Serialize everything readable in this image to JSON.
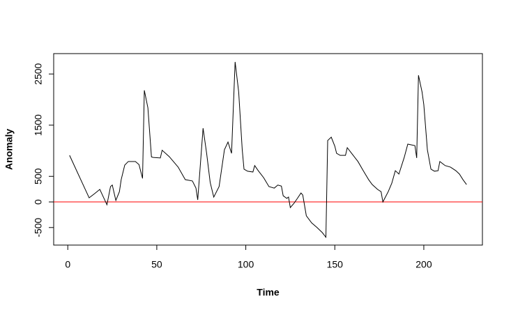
{
  "chart_data": {
    "type": "line",
    "x_label": "Time",
    "y_label": "Anomaly",
    "x": [
      1,
      12,
      15,
      18,
      20,
      22,
      24,
      25,
      27,
      29,
      30,
      32,
      34,
      36,
      38,
      40,
      42,
      43,
      45,
      47,
      48,
      52,
      53,
      57,
      62,
      66,
      70,
      72,
      73,
      76,
      78,
      80,
      82,
      85,
      88,
      90,
      92,
      94,
      96,
      98,
      99,
      101,
      104,
      105,
      107,
      110,
      113,
      116,
      118,
      120,
      121,
      123,
      124,
      125,
      127,
      129,
      131,
      132,
      134,
      137,
      140,
      143,
      145,
      146,
      148,
      150,
      151,
      153,
      156,
      157,
      160,
      163,
      166,
      169,
      171,
      174,
      176,
      177,
      180,
      182,
      184,
      186,
      189,
      191,
      195,
      196,
      197,
      199,
      200,
      202,
      204,
      206,
      208,
      209,
      212,
      215,
      218,
      220,
      222,
      224
    ],
    "series": [
      {
        "color": "#000000",
        "values": [
          910,
          80,
          160,
          245,
          95,
          -55,
          300,
          330,
          30,
          200,
          435,
          720,
          790,
          790,
          790,
          730,
          460,
          2180,
          1840,
          880,
          870,
          860,
          1010,
          885,
          680,
          435,
          410,
          270,
          40,
          1440,
          950,
          380,
          95,
          300,
          1020,
          1170,
          950,
          2735,
          2150,
          1020,
          640,
          600,
          585,
          710,
          610,
          475,
          300,
          270,
          330,
          310,
          120,
          70,
          95,
          -110,
          -30,
          70,
          175,
          135,
          -270,
          -410,
          -500,
          -600,
          -690,
          1200,
          1265,
          1090,
          950,
          910,
          910,
          1060,
          925,
          790,
          610,
          435,
          340,
          245,
          200,
          0,
          200,
          365,
          610,
          545,
          870,
          1130,
          1100,
          860,
          2475,
          2150,
          1900,
          1020,
          640,
          600,
          610,
          790,
          710,
          680,
          610,
          545,
          435,
          340
        ]
      }
    ],
    "reference_line": {
      "value": 0,
      "color": "#ff0000"
    },
    "xlim": [
      -7.92,
      232.92
    ],
    "xticks": [
      0,
      50,
      100,
      150,
      200
    ],
    "ylim": [
      -843,
      2898
    ],
    "yticks": [
      -500,
      0,
      500,
      1500,
      2500
    ]
  }
}
